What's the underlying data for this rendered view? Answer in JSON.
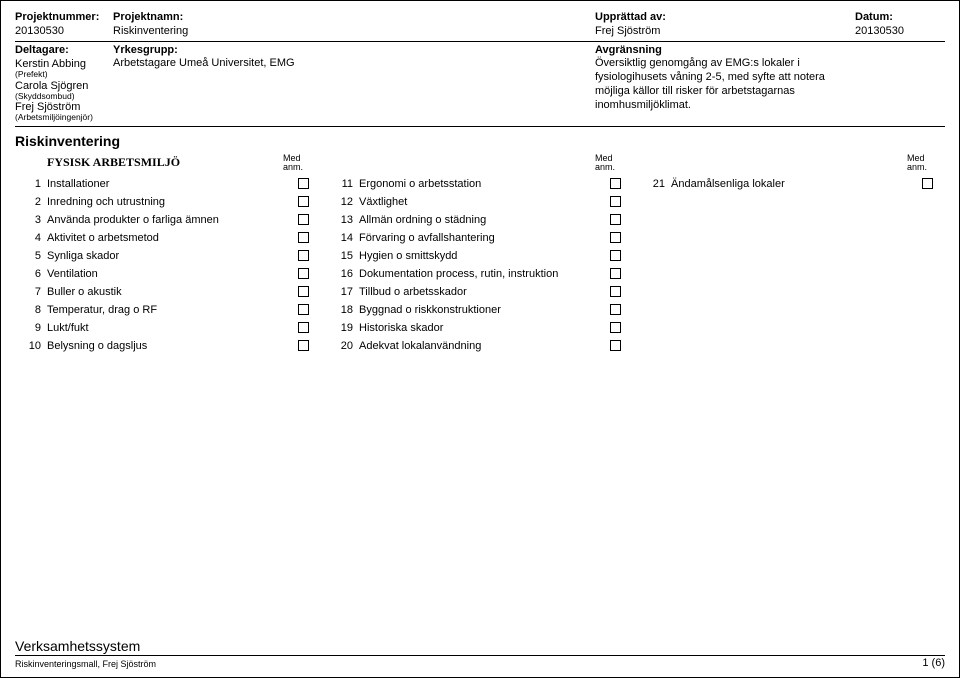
{
  "header": {
    "labels": {
      "projektnummer": "Projektnummer:",
      "projektnamn": "Projektnamn:",
      "upprattad": "Upprättad av:",
      "datum": "Datum:",
      "deltagare": "Deltagare:",
      "yrkesgrupp": "Yrkesgrupp:",
      "avgransning": "Avgränsning"
    },
    "projektnummer": "20130530",
    "projektnamn": "Riskinventering",
    "upprattad_av": "Frej Sjöström",
    "datum": "20130530",
    "yrkesgrupp": "Arbetstagare Umeå Universitet, EMG",
    "avgransning": "Översiktlig genomgång av EMG:s lokaler i fysiologihusets våning 2-5, med syfte att notera möjliga källor till risker för arbetstagarnas inomhusmiljöklimat.",
    "deltagare": [
      {
        "name": "Kerstin Abbing",
        "role": "(Prefekt)"
      },
      {
        "name": "Carola Sjögren",
        "role": "(Skyddsombud)"
      },
      {
        "name": "Frej Sjöström",
        "role": "(Arbetsmiljöingenjör)"
      }
    ]
  },
  "section_title": "Riskinventering",
  "table": {
    "group_heading": "FYSISK ARBETSMILJÖ",
    "med_anm": "Med anm.",
    "col1": [
      {
        "n": "1",
        "t": "Installationer"
      },
      {
        "n": "2",
        "t": "Inredning och utrustning"
      },
      {
        "n": "3",
        "t": "Använda produkter o farliga ämnen"
      },
      {
        "n": "4",
        "t": "Aktivitet o arbetsmetod"
      },
      {
        "n": "5",
        "t": "Synliga skador"
      },
      {
        "n": "6",
        "t": "Ventilation"
      },
      {
        "n": "7",
        "t": "Buller o akustik"
      },
      {
        "n": "8",
        "t": "Temperatur, drag o RF"
      },
      {
        "n": "9",
        "t": "Lukt/fukt"
      },
      {
        "n": "10",
        "t": "Belysning o dagsljus"
      }
    ],
    "col2": [
      {
        "n": "11",
        "t": "Ergonomi o arbetsstation"
      },
      {
        "n": "12",
        "t": "Växtlighet"
      },
      {
        "n": "13",
        "t": "Allmän ordning o städning"
      },
      {
        "n": "14",
        "t": "Förvaring o avfallshantering"
      },
      {
        "n": "15",
        "t": "Hygien o smittskydd"
      },
      {
        "n": "16",
        "t": "Dokumentation process, rutin, instruktion"
      },
      {
        "n": "17",
        "t": "Tillbud o arbetsskador"
      },
      {
        "n": "18",
        "t": "Byggnad o riskkonstruktioner"
      },
      {
        "n": "19",
        "t": "Historiska skador"
      },
      {
        "n": "20",
        "t": "Adekvat lokalanvändning"
      }
    ],
    "col3": [
      {
        "n": "21",
        "t": "Ändamålsenliga lokaler"
      }
    ]
  },
  "footer": {
    "title": "Verksamhetssystem",
    "sub": "Riskinventeringsmall, Frej Sjöström",
    "page": "1 (6)"
  }
}
